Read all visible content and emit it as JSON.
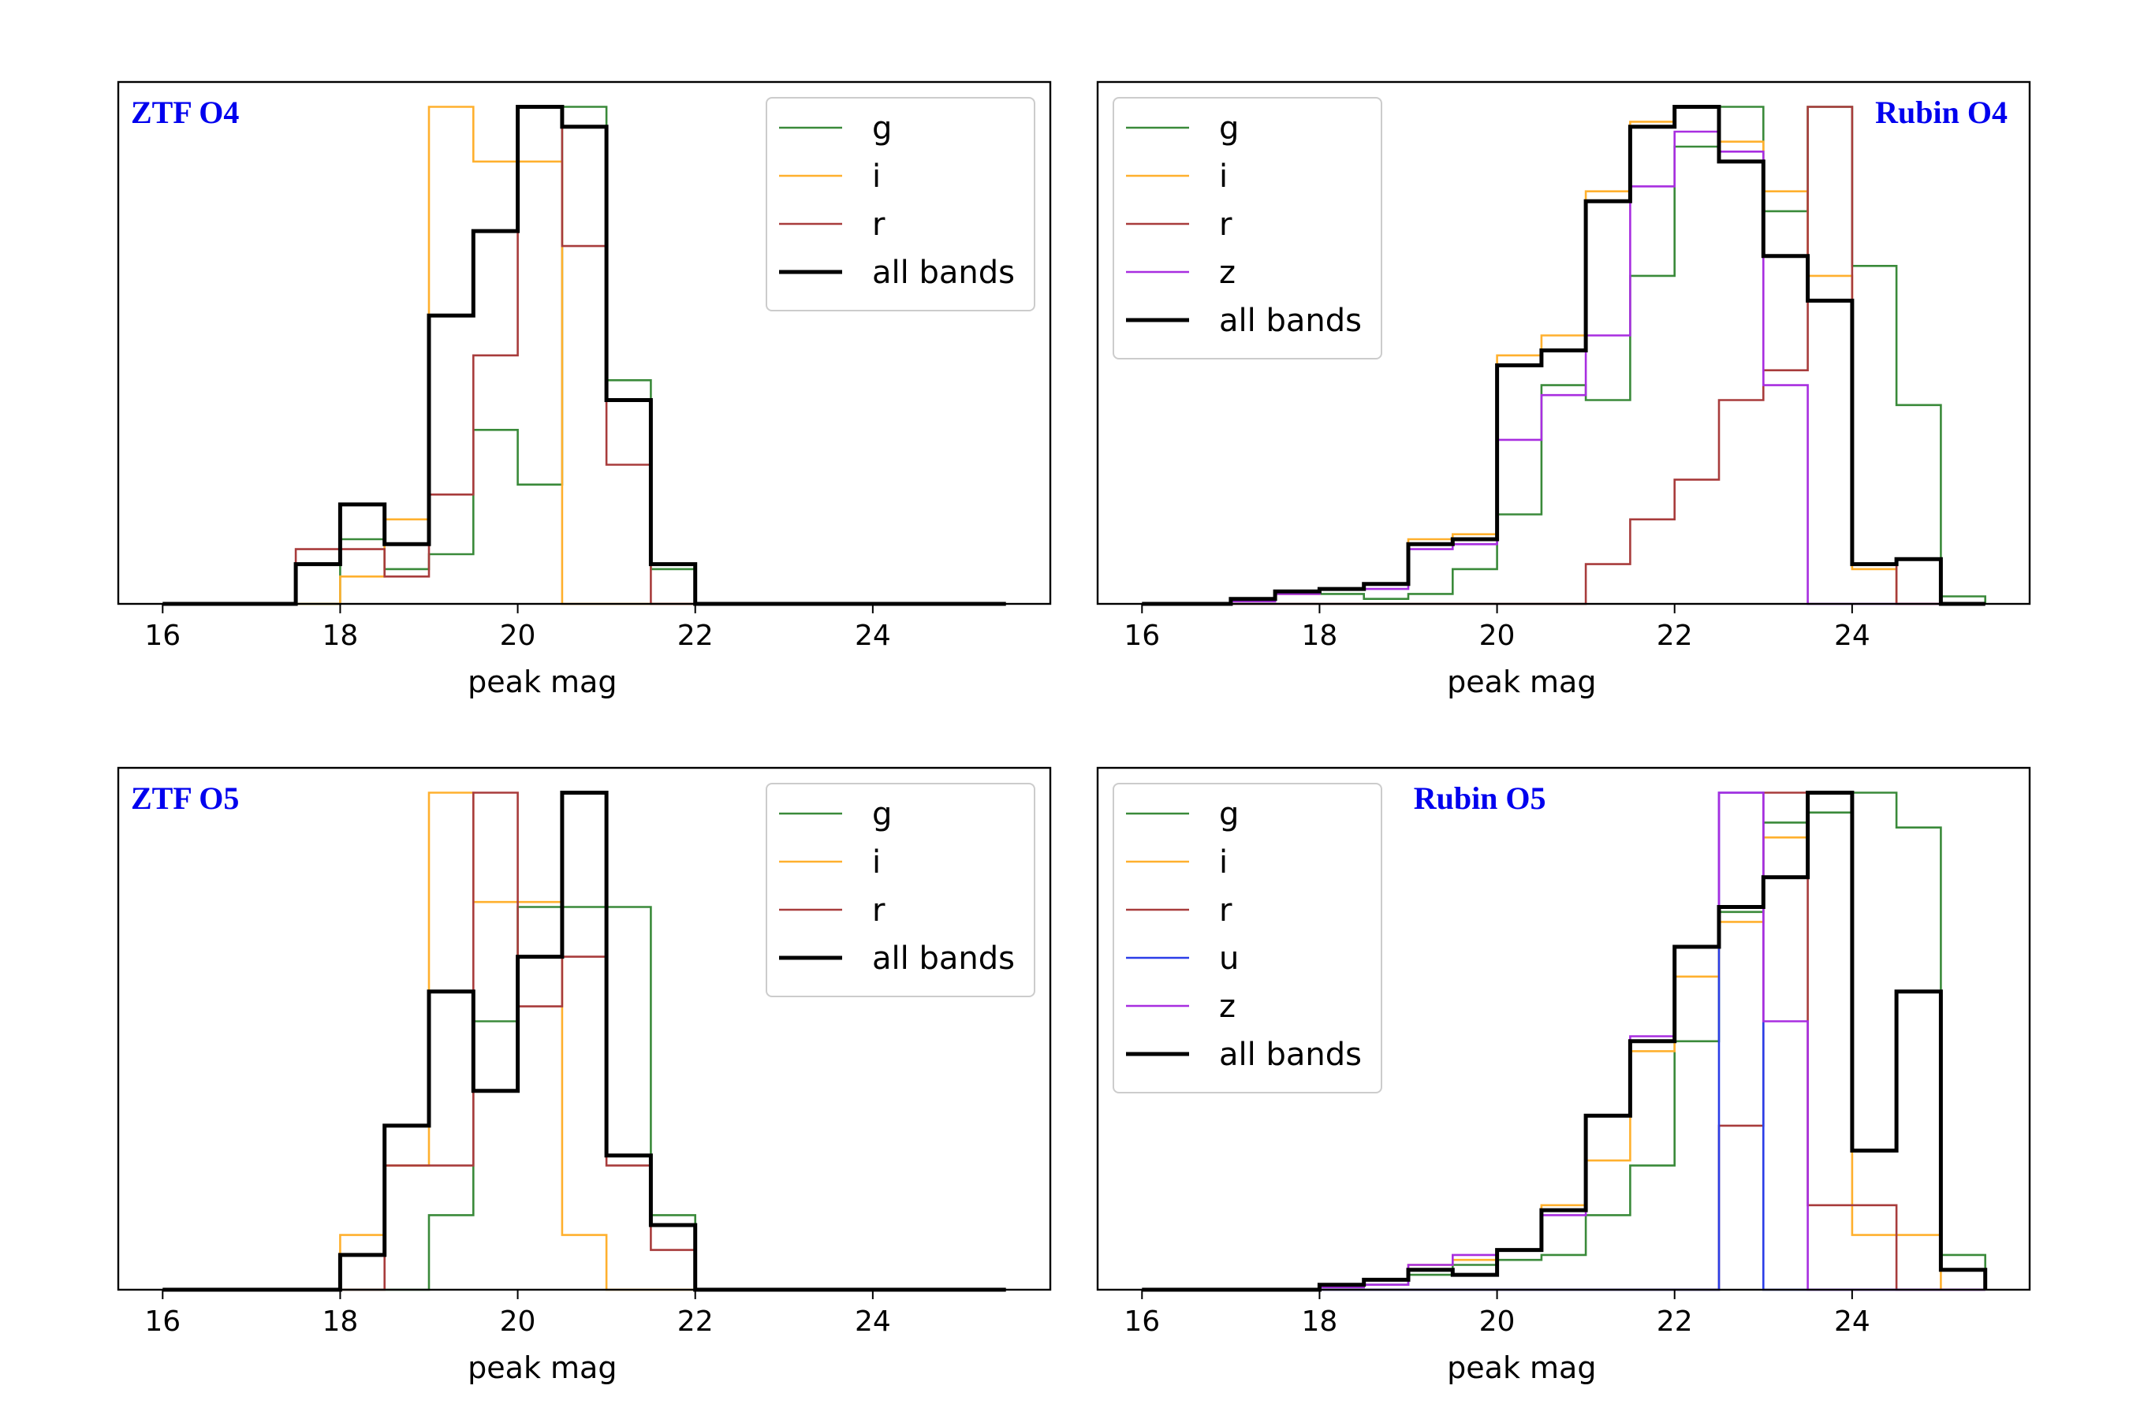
{
  "colors": {
    "g": "#3a8a3a",
    "i": "#ffb02e",
    "r": "#a83c3c",
    "u": "#2b3ee8",
    "z": "#a82ee0",
    "all": "#000000",
    "title": "#0000ee"
  },
  "chart_data": [
    {
      "type": "step-histogram",
      "title": "ZTF O4",
      "title_position": "top-left",
      "legend_position": "top-right",
      "xlabel": "peak mag",
      "ylabel": "",
      "xlim": [
        15.5,
        26.0
      ],
      "ylim": [
        0,
        1.05
      ],
      "xticks": [
        16,
        18,
        20,
        22,
        24
      ],
      "xtick_labels": [
        "16",
        "18",
        "20",
        "22",
        "24"
      ],
      "bin_edges": [
        16.0,
        16.5,
        17.0,
        17.5,
        18.0,
        18.5,
        19.0,
        19.5,
        20.0,
        20.5,
        21.0,
        21.5,
        22.0,
        22.5,
        23.0,
        23.5,
        24.0,
        24.5,
        25.0,
        25.5
      ],
      "series": [
        {
          "name": "g",
          "key": "g",
          "values": [
            0,
            0,
            0,
            0,
            0.13,
            0.07,
            0.1,
            0.35,
            0.24,
            1.0,
            0.45,
            0.07,
            0,
            0,
            0,
            0,
            0,
            0,
            0
          ]
        },
        {
          "name": "i",
          "key": "i",
          "values": [
            0,
            0,
            0,
            0,
            0.055,
            0.17,
            1.0,
            0.89,
            0.89,
            0,
            0,
            0,
            0,
            0,
            0,
            0,
            0,
            0,
            0
          ]
        },
        {
          "name": "r",
          "key": "r",
          "values": [
            0,
            0,
            0,
            0.11,
            0.11,
            0.055,
            0.22,
            0.5,
            1.0,
            0.72,
            0.28,
            0,
            0,
            0,
            0,
            0,
            0,
            0,
            0
          ]
        },
        {
          "name": "all bands",
          "key": "all",
          "values": [
            0,
            0,
            0,
            0.08,
            0.2,
            0.12,
            0.58,
            0.75,
            1.0,
            0.96,
            0.41,
            0.08,
            0,
            0,
            0,
            0,
            0,
            0,
            0
          ]
        }
      ]
    },
    {
      "type": "step-histogram",
      "title": "Rubin O4",
      "title_position": "top-right",
      "legend_position": "top-left",
      "xlabel": "peak mag",
      "ylabel": "",
      "xlim": [
        15.5,
        26.0
      ],
      "ylim": [
        0,
        1.05
      ],
      "xticks": [
        16,
        18,
        20,
        22,
        24
      ],
      "xtick_labels": [
        "16",
        "18",
        "20",
        "22",
        "24"
      ],
      "bin_edges": [
        16.0,
        16.5,
        17.0,
        17.5,
        18.0,
        18.5,
        19.0,
        19.5,
        20.0,
        20.5,
        21.0,
        21.5,
        22.0,
        22.5,
        23.0,
        23.5,
        24.0,
        24.5,
        25.0,
        25.5
      ],
      "series": [
        {
          "name": "g",
          "key": "g",
          "values": [
            0,
            0,
            0.01,
            0.02,
            0.02,
            0.01,
            0.02,
            0.07,
            0.18,
            0.44,
            0.41,
            0.66,
            0.92,
            1.0,
            0.79,
            1.0,
            0.68,
            0.4,
            0.015
          ]
        },
        {
          "name": "i",
          "key": "i",
          "values": [
            0,
            0,
            0.01,
            0.02,
            0.03,
            0.04,
            0.13,
            0.14,
            0.5,
            0.54,
            0.83,
            0.97,
            1.0,
            0.93,
            0.83,
            0.66,
            0.07,
            0,
            0
          ]
        },
        {
          "name": "r",
          "key": "r",
          "values": [
            0,
            0,
            0,
            0,
            0,
            0,
            0,
            0,
            0,
            0,
            0.08,
            0.17,
            0.25,
            0.41,
            0.47,
            1.0,
            0.08,
            0,
            0
          ]
        },
        {
          "name": "z",
          "key": "z",
          "values": [
            0,
            0,
            0.005,
            0.02,
            0.03,
            0.03,
            0.11,
            0.12,
            0.33,
            0.42,
            0.54,
            0.84,
            0.95,
            0.91,
            0.44,
            0,
            0,
            0,
            0
          ]
        },
        {
          "name": "all bands",
          "key": "all",
          "values": [
            0,
            0,
            0.01,
            0.025,
            0.03,
            0.04,
            0.12,
            0.13,
            0.48,
            0.51,
            0.81,
            0.96,
            1.0,
            0.89,
            0.7,
            0.61,
            0.08,
            0.09,
            0
          ]
        }
      ]
    },
    {
      "type": "step-histogram",
      "title": "ZTF O5",
      "title_position": "top-left",
      "legend_position": "top-right",
      "xlabel": "peak mag",
      "ylabel": "",
      "xlim": [
        15.5,
        26.0
      ],
      "ylim": [
        0,
        1.05
      ],
      "xticks": [
        16,
        18,
        20,
        22,
        24
      ],
      "xtick_labels": [
        "16",
        "18",
        "20",
        "22",
        "24"
      ],
      "bin_edges": [
        16.0,
        16.5,
        17.0,
        17.5,
        18.0,
        18.5,
        19.0,
        19.5,
        20.0,
        20.5,
        21.0,
        21.5,
        22.0,
        22.5,
        23.0,
        23.5,
        24.0,
        24.5,
        25.0,
        25.5
      ],
      "series": [
        {
          "name": "g",
          "key": "g",
          "values": [
            0,
            0,
            0,
            0,
            0,
            0,
            0.15,
            0.54,
            0.77,
            0.77,
            0.77,
            0.15,
            0,
            0,
            0,
            0,
            0,
            0,
            0
          ]
        },
        {
          "name": "i",
          "key": "i",
          "values": [
            0,
            0,
            0,
            0,
            0.11,
            0.25,
            1.0,
            0.78,
            0.78,
            0.11,
            0,
            0,
            0,
            0,
            0,
            0,
            0,
            0,
            0
          ]
        },
        {
          "name": "r",
          "key": "r",
          "values": [
            0,
            0,
            0,
            0,
            0,
            0.25,
            0.25,
            1.0,
            0.57,
            0.67,
            0.25,
            0.08,
            0,
            0,
            0,
            0,
            0,
            0,
            0
          ]
        },
        {
          "name": "all bands",
          "key": "all",
          "values": [
            0,
            0,
            0,
            0,
            0.07,
            0.33,
            0.6,
            0.4,
            0.67,
            1.0,
            0.27,
            0.13,
            0,
            0,
            0,
            0,
            0,
            0,
            0
          ]
        }
      ]
    },
    {
      "type": "step-histogram",
      "title": "Rubin O5",
      "title_position": "top-center",
      "legend_position": "top-left",
      "xlabel": "peak mag",
      "ylabel": "",
      "xlim": [
        15.5,
        26.0
      ],
      "ylim": [
        0,
        1.05
      ],
      "xticks": [
        16,
        18,
        20,
        22,
        24
      ],
      "xtick_labels": [
        "16",
        "18",
        "20",
        "22",
        "24"
      ],
      "bin_edges": [
        16.0,
        16.5,
        17.0,
        17.5,
        18.0,
        18.5,
        19.0,
        19.5,
        20.0,
        20.5,
        21.0,
        21.5,
        22.0,
        22.5,
        23.0,
        23.5,
        24.0,
        24.5,
        25.0,
        25.5
      ],
      "series": [
        {
          "name": "g",
          "key": "g",
          "values": [
            0,
            0,
            0,
            0,
            0.005,
            0.01,
            0.03,
            0.05,
            0.06,
            0.07,
            0.15,
            0.25,
            0.5,
            0.76,
            0.94,
            0.96,
            1.0,
            0.93,
            0.07
          ]
        },
        {
          "name": "i",
          "key": "i",
          "values": [
            0,
            0,
            0,
            0,
            0.01,
            0.02,
            0.05,
            0.06,
            0.08,
            0.17,
            0.26,
            0.48,
            0.63,
            0.74,
            0.91,
            1.0,
            0.11,
            0.11,
            0
          ]
        },
        {
          "name": "r",
          "key": "r",
          "values": [
            0,
            0,
            0,
            0,
            0,
            0,
            0,
            0,
            0,
            0,
            0,
            0,
            0,
            0.33,
            1.0,
            0.17,
            0.17,
            0,
            0
          ]
        },
        {
          "name": "u",
          "key": "u",
          "values": [
            0,
            0,
            0,
            0,
            0,
            0,
            0,
            0,
            0,
            0,
            0,
            0,
            0,
            1.0,
            0,
            0,
            0,
            0,
            0
          ]
        },
        {
          "name": "z",
          "key": "z",
          "values": [
            0,
            0,
            0,
            0,
            0.005,
            0.01,
            0.05,
            0.07,
            0.08,
            0.15,
            0.35,
            0.51,
            0.69,
            1.0,
            0.54,
            0,
            0,
            0,
            0
          ]
        },
        {
          "name": "all bands",
          "key": "all",
          "values": [
            0,
            0,
            0,
            0,
            0.01,
            0.02,
            0.04,
            0.03,
            0.08,
            0.16,
            0.35,
            0.5,
            0.69,
            0.77,
            0.83,
            1.0,
            0.28,
            0.6,
            0.04
          ]
        }
      ]
    }
  ]
}
